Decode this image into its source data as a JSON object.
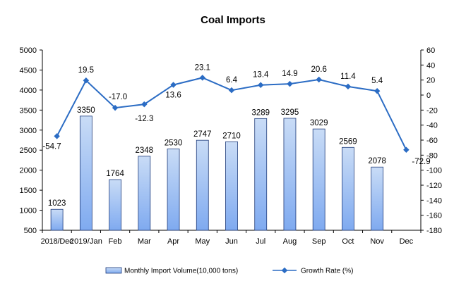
{
  "chart_data": {
    "type": "bar",
    "title": "Coal Imports",
    "categories": [
      "2018/Dec",
      "2019/Jan",
      "Feb",
      "Mar",
      "Apr",
      "May",
      "Jun",
      "Jul",
      "Aug",
      "Sep",
      "Oct",
      "Nov",
      "Dec"
    ],
    "series": [
      {
        "name": "Monthly Import Volume(10,000 tons)",
        "type": "bar",
        "axis": "left",
        "values": [
          1023,
          3350,
          1764,
          2348,
          2530,
          2747,
          2710,
          3289,
          3295,
          3029,
          2569,
          2078,
          null
        ],
        "labels": [
          "1023",
          "3350",
          "1764",
          "2348",
          "2530",
          "2747",
          "2710",
          "3289",
          "3295",
          "3029",
          "2569",
          "2078",
          ""
        ]
      },
      {
        "name": "Growth Rate (%)",
        "type": "line",
        "axis": "right",
        "values": [
          -54.7,
          19.5,
          -17.0,
          -12.3,
          13.6,
          23.1,
          6.4,
          13.4,
          14.9,
          20.6,
          11.4,
          5.4,
          -72.9
        ],
        "labels": [
          "-54.7",
          "19.5",
          "-17.0",
          "-12.3",
          "13.6",
          "23.1",
          "6.4",
          "13.4",
          "14.9",
          "20.6",
          "11.4",
          "5.4",
          "-72.9"
        ]
      }
    ],
    "y_left": {
      "min": 500,
      "max": 5000,
      "step": 500,
      "ticks": [
        "500",
        "1000",
        "1500",
        "2000",
        "2500",
        "3000",
        "3500",
        "4000",
        "4500",
        "5000"
      ]
    },
    "y_right": {
      "min": -180,
      "max": 60,
      "step": 20,
      "ticks": [
        "-180",
        "-160",
        "-140",
        "-120",
        "-100",
        "-80",
        "-60",
        "-40",
        "-20",
        "0",
        "20",
        "40",
        "60"
      ]
    },
    "grid": false,
    "legend_position": "bottom",
    "colors": {
      "bar_fill_top": "#c9dcf6",
      "bar_fill_bottom": "#7faaf0",
      "bar_stroke": "#1f3b7a",
      "line": "#2b6cc4",
      "axis": "#000000"
    }
  }
}
